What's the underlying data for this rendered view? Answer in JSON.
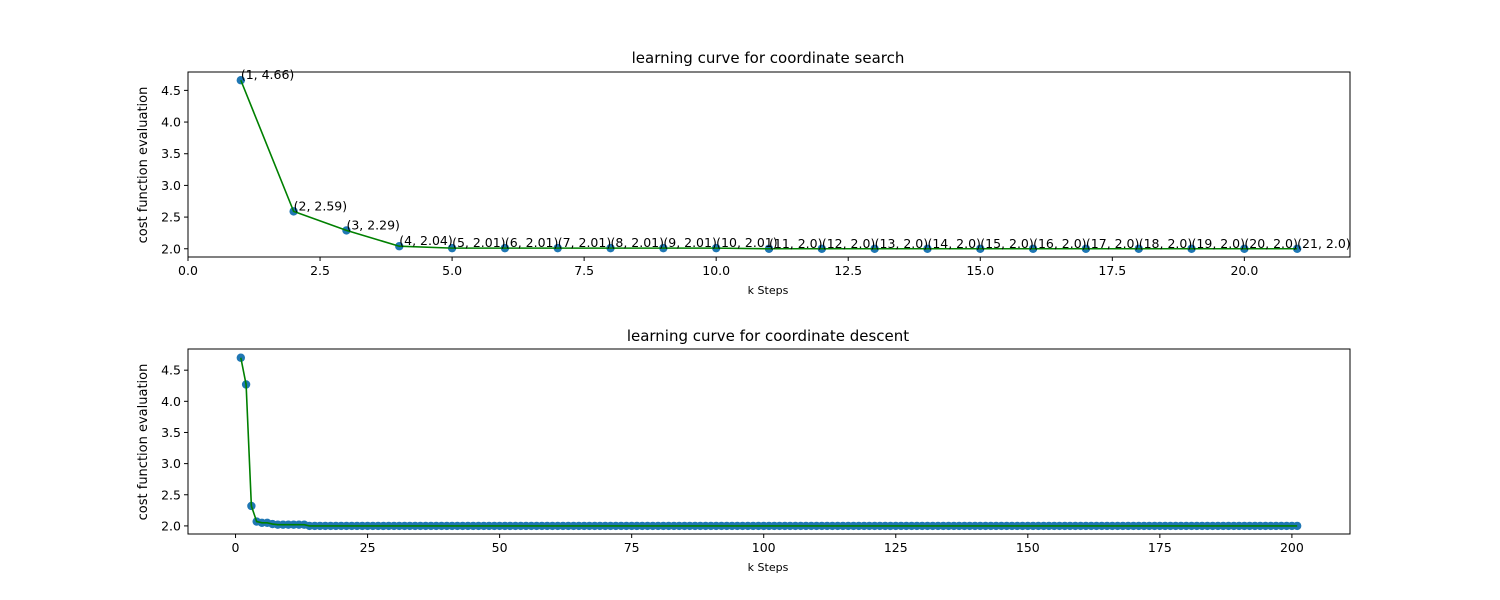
{
  "chart_data": [
    {
      "type": "line",
      "title": "learning curve for coordinate search",
      "xlabel": "k Steps",
      "ylabel": "cost function evaluation",
      "xlim": [
        0,
        22
      ],
      "ylim": [
        1.87,
        4.79
      ],
      "xticks": [
        0.0,
        2.5,
        5.0,
        7.5,
        10.0,
        12.5,
        15.0,
        17.5,
        20.0
      ],
      "xtick_labels": [
        "0.0",
        "2.5",
        "5.0",
        "7.5",
        "10.0",
        "12.5",
        "15.0",
        "17.5",
        "20.0"
      ],
      "yticks": [
        2.0,
        2.5,
        3.0,
        3.5,
        4.0,
        4.5
      ],
      "ytick_labels": [
        "2.0",
        "2.5",
        "3.0",
        "3.5",
        "4.0",
        "4.5"
      ],
      "line_color": "#008000",
      "marker_color": "#1f77b4",
      "grid": false,
      "legend": "none",
      "series": [
        {
          "x": [
            1,
            2,
            3,
            4,
            5,
            6,
            7,
            8,
            9,
            10,
            11,
            12,
            13,
            14,
            15,
            16,
            17,
            18,
            19,
            20,
            21
          ],
          "y": [
            4.66,
            2.59,
            2.29,
            2.04,
            2.01,
            2.01,
            2.01,
            2.01,
            2.01,
            2.01,
            2.0,
            2.0,
            2.0,
            2.0,
            2.0,
            2.0,
            2.0,
            2.0,
            2.0,
            2.0,
            2.0
          ]
        }
      ],
      "annotations": [
        "(1, 4.66)",
        "(2, 2.59)",
        "(3, 2.29)",
        "(4, 2.04)",
        "(5, 2.01)",
        "(6, 2.01)",
        "(7, 2.01)",
        "(8, 2.01)",
        "(9, 2.01)",
        "(10, 2.01)",
        "(11, 2.0)",
        "(12, 2.0)",
        "(13, 2.0)",
        "(14, 2.0)",
        "(15, 2.0)",
        "(16, 2.0)",
        "(17, 2.0)",
        "(18, 2.0)",
        "(19, 2.0)",
        "(20, 2.0)",
        "(21, 2.0)"
      ]
    },
    {
      "type": "line",
      "title": "learning curve for coordinate descent",
      "xlabel": "k Steps",
      "ylabel": "cost function evaluation",
      "xlim": [
        -9,
        211
      ],
      "ylim": [
        1.87,
        4.84
      ],
      "xticks": [
        0,
        25,
        50,
        75,
        100,
        125,
        150,
        175,
        200
      ],
      "xtick_labels": [
        "0",
        "25",
        "50",
        "75",
        "100",
        "125",
        "150",
        "175",
        "200"
      ],
      "yticks": [
        2.0,
        2.5,
        3.0,
        3.5,
        4.0,
        4.5
      ],
      "ytick_labels": [
        "2.0",
        "2.5",
        "3.0",
        "3.5",
        "4.0",
        "4.5"
      ],
      "line_color": "#008000",
      "marker_color": "#1f77b4",
      "grid": false,
      "legend": "none",
      "series": [
        {
          "x_start": 1,
          "x_end": 201,
          "y_head": [
            4.7,
            4.27,
            2.32,
            2.07,
            2.05,
            2.05,
            2.03,
            2.02,
            2.02,
            2.02,
            2.02,
            2.02,
            2.02
          ],
          "y_tail": 2.0
        }
      ]
    }
  ]
}
